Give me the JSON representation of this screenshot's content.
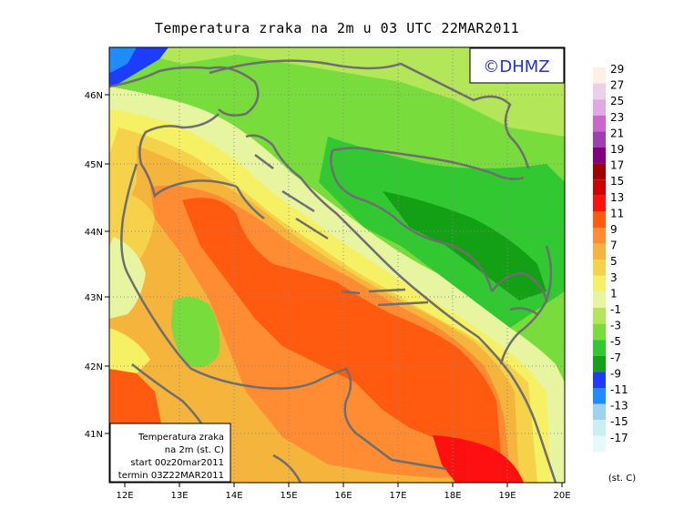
{
  "title": "Temperatura zraka na 2m u 03 UTC 22MAR2011",
  "watermark": "©DHMZ",
  "info_box": [
    "Temperatura zraka",
    "na 2m (st. C)",
    "start 00z20mar2011",
    "termin 03Z22MAR2011"
  ],
  "unit_label": "(st. C)",
  "lat_labels": [
    "46N",
    "45N",
    "44N",
    "43N",
    "42N",
    "41N"
  ],
  "lon_labels": [
    "12E",
    "13E",
    "14E",
    "15E",
    "16E",
    "17E",
    "18E",
    "19E",
    "20E"
  ],
  "legend": {
    "labels": [
      "29",
      "27",
      "25",
      "23",
      "21",
      "19",
      "17",
      "15",
      "13",
      "11",
      "9",
      "7",
      "5",
      "3",
      "1",
      "-1",
      "-3",
      "-5",
      "-7",
      "-9",
      "-11",
      "-13",
      "-15",
      "-17"
    ],
    "colors": [
      "#fff0e6",
      "#ead0ea",
      "#e0a8e4",
      "#cc66cc",
      "#a040b0",
      "#800080",
      "#a00000",
      "#d00000",
      "#ff1010",
      "#ff5a10",
      "#ff8c32",
      "#f5b43c",
      "#f5d24a",
      "#f5f064",
      "#e8f5a0",
      "#b4e65a",
      "#78dc3c",
      "#32c832",
      "#14a014",
      "#1e3cff",
      "#1e8cff",
      "#a0d2f0",
      "#c8f0f0",
      "#e6fafa"
    ]
  }
}
